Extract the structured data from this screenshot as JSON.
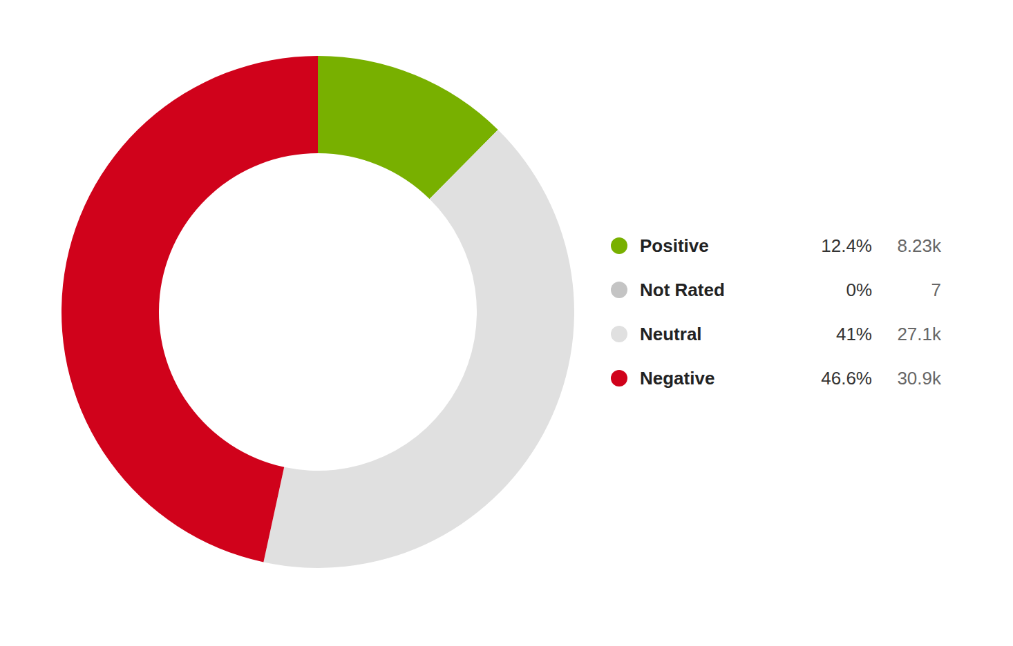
{
  "chart_data": {
    "type": "doughnut",
    "categories": [
      "Positive",
      "Not Rated",
      "Neutral",
      "Negative"
    ],
    "values": [
      12.4,
      0,
      41,
      46.6
    ],
    "value_labels": [
      "12.4%",
      "0%",
      "41%",
      "46.6%"
    ],
    "counts": [
      8230,
      7,
      27100,
      30900
    ],
    "count_labels": [
      "8.23k",
      "7",
      "27.1k",
      "30.9k"
    ],
    "colors": [
      "#78b000",
      "#c4c4c4",
      "#e0e0e0",
      "#d0021b"
    ],
    "legend": "right"
  }
}
